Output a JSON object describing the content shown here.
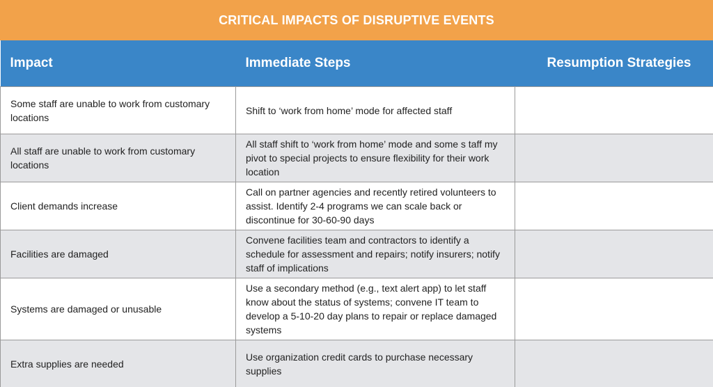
{
  "title": "CRITICAL IMPACTS OF DISRUPTIVE EVENTS",
  "colors": {
    "banner": "#f2a24a",
    "header": "#3a86c8",
    "alt_row": "#e4e5e8",
    "border": "#9a9a9a"
  },
  "columns": [
    "Impact",
    "Immediate Steps",
    "Resumption Strategies"
  ],
  "rows": [
    {
      "impact": "Some staff are unable to work from customary locations",
      "steps": "Shift to ‘work from home’ mode for affected staff",
      "resumption": ""
    },
    {
      "impact": "All staff are unable to work from customary locations",
      "steps": "All staff shift to ‘work from home’ mode and some s taff my pivot to special projects to ensure flexibility for their work location",
      "resumption": ""
    },
    {
      "impact": "Client demands increase",
      "steps": "Call on partner agencies and recently retired volunteers to assist. Identify 2-4 programs we can scale back or discontinue for 30-60-90 days",
      "resumption": ""
    },
    {
      "impact": "Facilities are damaged",
      "steps": "Convene facilities team and contractors to identify a schedule for assessment and repairs; notify insurers; notify staff of implications",
      "resumption": ""
    },
    {
      "impact": "Systems are damaged or unusable",
      "steps": "Use a secondary method (e.g., text alert app) to let staff know about the status of systems; convene IT team to develop a 5-10-20 day plans to repair or replace damaged systems",
      "resumption": ""
    },
    {
      "impact": "Extra supplies are needed",
      "steps": "Use organization credit cards to purchase necessary supplies",
      "resumption": ""
    }
  ]
}
